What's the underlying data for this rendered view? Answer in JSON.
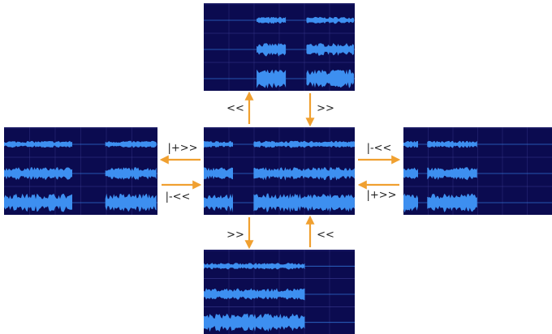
{
  "arrows": [
    {
      "label": "<<"
    },
    {
      "label": ">>"
    },
    {
      "label": "|+>>"
    },
    {
      "label": "|-<<"
    },
    {
      "label": "|-<<"
    },
    {
      "label": "|+>>"
    },
    {
      "label": ">>"
    },
    {
      "label": "<<"
    }
  ]
}
